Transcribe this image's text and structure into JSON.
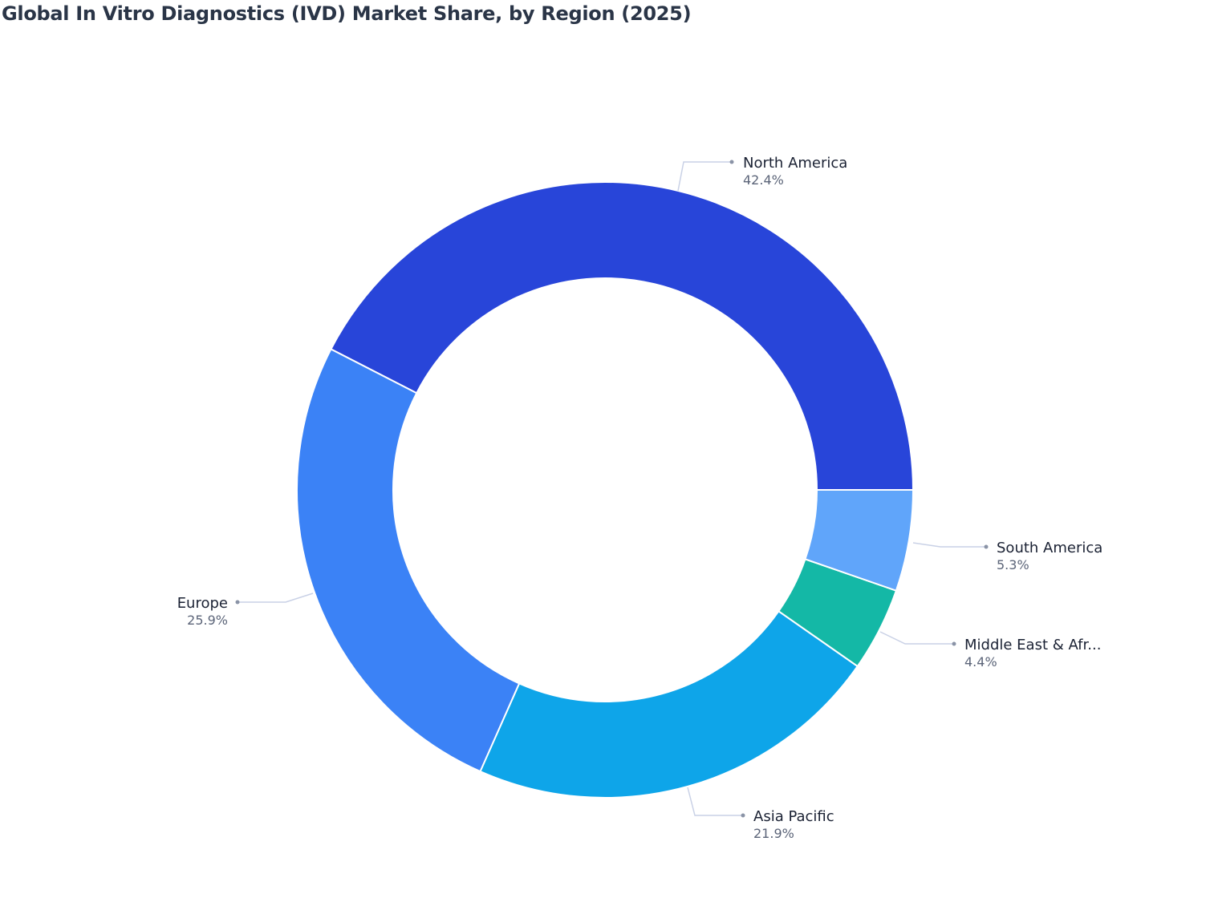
{
  "chart_data": {
    "type": "pie",
    "subtype": "donut",
    "title": "Global In Vitro Diagnostics (IVD) Market Share, by Region (2025)",
    "unit": "%",
    "slices": [
      {
        "label": "North America",
        "value": 42.4,
        "display": "42.4%",
        "color": "#2845d9"
      },
      {
        "label": "Europe",
        "value": 25.9,
        "display": "25.9%",
        "color": "#3b82f6"
      },
      {
        "label": "Asia Pacific",
        "value": 21.9,
        "display": "21.9%",
        "color": "#0ea5e9"
      },
      {
        "label": "Middle East & Afr...",
        "value": 4.4,
        "display": "4.4%",
        "color": "#14b8a6"
      },
      {
        "label": "South America",
        "value": 5.3,
        "display": "5.3%",
        "color": "#60a5fa"
      }
    ],
    "start_angle": "3 o'clock",
    "direction": "counterclockwise",
    "legend": "none (outside labels with leader lines)"
  }
}
